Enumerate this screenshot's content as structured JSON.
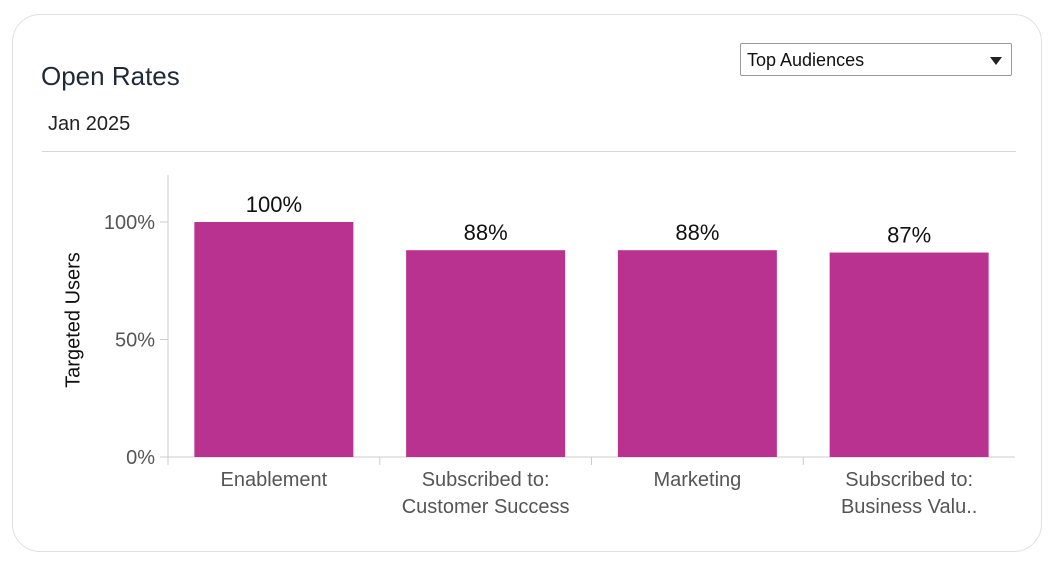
{
  "card": {
    "title": "Open Rates",
    "subtitle": "Jan 2025",
    "audience_select": {
      "selected": "Top Audiences"
    }
  },
  "colors": {
    "bar": "#b93290",
    "axis": "#cccccc",
    "tick_text": "#555555",
    "label_text": "#111111"
  },
  "chart_data": {
    "type": "bar",
    "title": "",
    "xlabel": "",
    "ylabel": "Targeted Users",
    "ylim": [
      0,
      120
    ],
    "yticks": [
      0,
      50,
      100
    ],
    "ytick_labels": [
      "0%",
      "50%",
      "100%"
    ],
    "categories": [
      [
        "Enablement"
      ],
      [
        "Subscribed to:",
        "Customer Success"
      ],
      [
        "Marketing"
      ],
      [
        "Subscribed to:",
        "Business Valu.."
      ]
    ],
    "values": [
      100,
      88,
      88,
      87
    ],
    "data_labels": [
      "100%",
      "88%",
      "88%",
      "87%"
    ]
  }
}
